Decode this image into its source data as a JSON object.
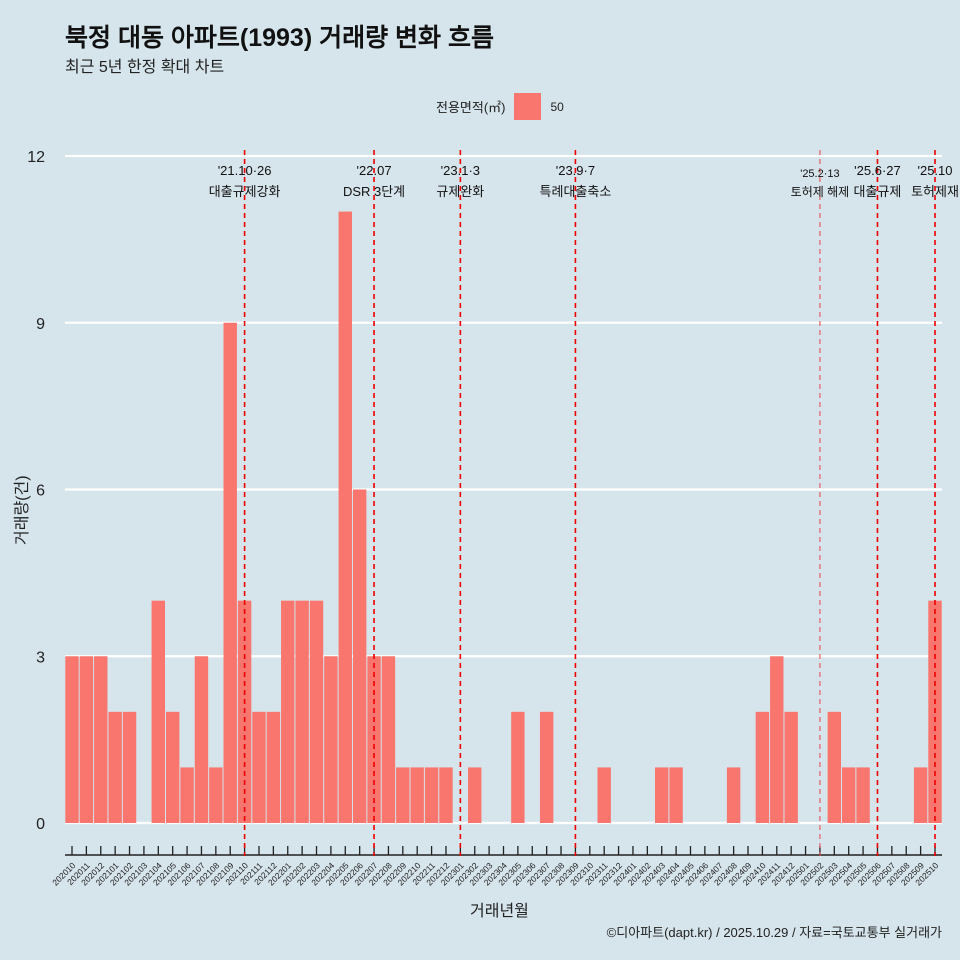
{
  "title": "북정 대동 아파트(1993) 거래량 변화 흐름",
  "subtitle": "최근 5년 한정 확대 차트",
  "legend": {
    "title": "전용면적(㎡)",
    "label": "50",
    "color": "#f8766d"
  },
  "caption": "©디아파트(dapt.kr) / 2025.10.29 / 자료=국토교통부 실거래가",
  "chart_data": {
    "type": "bar",
    "title": "북정 대동 아파트(1993) 거래량 변화 흐름",
    "xlabel": "거래년월",
    "ylabel": "거래량(건)",
    "ylim": [
      0,
      12
    ],
    "yticks": [
      0,
      3,
      6,
      9,
      12
    ],
    "grid": true,
    "legend_position": "top",
    "categories": [
      "202010",
      "202011",
      "202012",
      "202101",
      "202102",
      "202103",
      "202104",
      "202105",
      "202106",
      "202107",
      "202108",
      "202109",
      "202110",
      "202111",
      "202112",
      "202201",
      "202202",
      "202203",
      "202204",
      "202205",
      "202206",
      "202207",
      "202208",
      "202209",
      "202210",
      "202211",
      "202212",
      "202301",
      "202302",
      "202303",
      "202304",
      "202305",
      "202306",
      "202307",
      "202308",
      "202309",
      "202310",
      "202311",
      "202312",
      "202401",
      "202402",
      "202403",
      "202404",
      "202405",
      "202406",
      "202407",
      "202408",
      "202409",
      "202410",
      "202411",
      "202412",
      "202501",
      "202502",
      "202503",
      "202504",
      "202505",
      "202506",
      "202507",
      "202508",
      "202509",
      "202510"
    ],
    "series": [
      {
        "name": "50",
        "values": [
          3,
          3,
          3,
          2,
          2,
          0,
          4,
          2,
          1,
          3,
          1,
          9,
          4,
          2,
          2,
          4,
          4,
          4,
          3,
          11,
          6,
          3,
          3,
          1,
          1,
          1,
          1,
          0,
          1,
          0,
          0,
          2,
          0,
          2,
          0,
          0,
          0,
          1,
          0,
          0,
          0,
          1,
          1,
          0,
          0,
          0,
          1,
          0,
          2,
          3,
          2,
          0,
          0,
          2,
          1,
          1,
          0,
          0,
          0,
          1,
          4
        ]
      }
    ],
    "annotations": [
      {
        "x": "202110",
        "date": "'21.10·26",
        "text": "대출규제강화"
      },
      {
        "x": "202207",
        "date": "'22.07",
        "text": "DSR 3단계"
      },
      {
        "x": "202301",
        "date": "'23.1·3",
        "text": "규제완화"
      },
      {
        "x": "202309",
        "date": "'23.9·7",
        "text": "특례대출축소"
      },
      {
        "x": "202502",
        "date": "'25.2·13",
        "text": "토허제 해제",
        "minor": true
      },
      {
        "x": "202506",
        "date": "'25.6·27",
        "text": "대출규제"
      },
      {
        "x": "202510",
        "date": "'25.10",
        "text": "토허제재"
      }
    ]
  }
}
